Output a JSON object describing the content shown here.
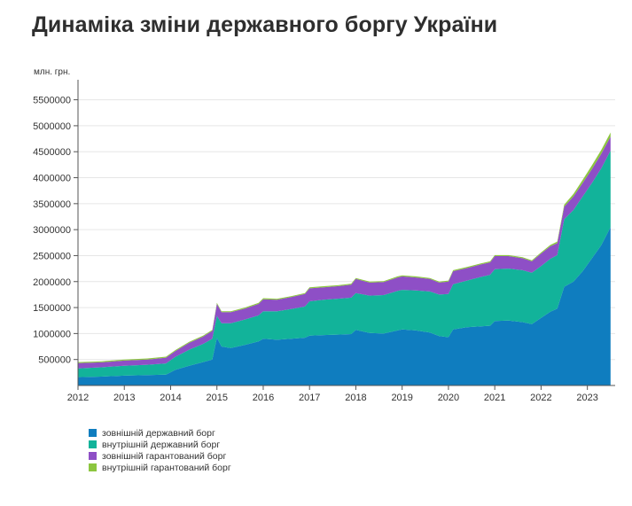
{
  "title": "Динаміка зміни державного боргу України",
  "chart_data": {
    "type": "area",
    "stacked": true,
    "ylabel": "млн. грн.",
    "ylim": [
      0,
      5800000
    ],
    "yticks": [
      500000,
      1000000,
      1500000,
      2000000,
      2500000,
      3000000,
      3500000,
      4000000,
      4500000,
      5000000,
      5500000
    ],
    "ytick_labels": [
      "500000",
      "1000000",
      "1500000",
      "2000000",
      "2500000",
      "3000000",
      "3500000",
      "4000000",
      "4500000",
      "5000000",
      "5500000"
    ],
    "xlim": [
      2012.0,
      2023.6
    ],
    "xticks": [
      2012,
      2013,
      2014,
      2015,
      2016,
      2017,
      2018,
      2019,
      2020,
      2021,
      2022,
      2023
    ],
    "xtick_labels": [
      "2012",
      "2013",
      "2014",
      "2015",
      "2016",
      "2017",
      "2018",
      "2019",
      "2020",
      "2021",
      "2022",
      "2023"
    ],
    "x": [
      2012.0,
      2012.5,
      2013.0,
      2013.5,
      2013.9,
      2014.1,
      2014.4,
      2014.7,
      2014.9,
      2015.0,
      2015.1,
      2015.3,
      2015.6,
      2015.9,
      2016.0,
      2016.3,
      2016.6,
      2016.9,
      2017.0,
      2017.3,
      2017.6,
      2017.9,
      2018.0,
      2018.3,
      2018.6,
      2018.9,
      2019.0,
      2019.3,
      2019.6,
      2019.8,
      2020.0,
      2020.1,
      2020.4,
      2020.7,
      2020.9,
      2021.0,
      2021.3,
      2021.6,
      2021.8,
      2022.0,
      2022.2,
      2022.35,
      2022.5,
      2022.7,
      2022.9,
      2023.1,
      2023.3,
      2023.5
    ],
    "series": [
      {
        "name": "зовнішній державний борг",
        "color": "#0f7dbf",
        "values": [
          160000,
          170000,
          190000,
          200000,
          210000,
          300000,
          380000,
          450000,
          500000,
          920000,
          750000,
          720000,
          780000,
          850000,
          900000,
          880000,
          900000,
          920000,
          960000,
          970000,
          980000,
          990000,
          1070000,
          1010000,
          1000000,
          1060000,
          1080000,
          1060000,
          1020000,
          950000,
          930000,
          1080000,
          1120000,
          1140000,
          1150000,
          1240000,
          1250000,
          1220000,
          1180000,
          1300000,
          1420000,
          1480000,
          1900000,
          2000000,
          2200000,
          2450000,
          2700000,
          3050000
        ]
      },
      {
        "name": "внутрішній державний борг",
        "color": "#12b39a",
        "values": [
          170000,
          180000,
          190000,
          200000,
          215000,
          250000,
          310000,
          350000,
          400000,
          420000,
          450000,
          480000,
          490000,
          500000,
          530000,
          550000,
          570000,
          600000,
          660000,
          680000,
          690000,
          700000,
          710000,
          720000,
          740000,
          760000,
          760000,
          770000,
          790000,
          800000,
          830000,
          870000,
          900000,
          950000,
          980000,
          1000000,
          1000000,
          1000000,
          990000,
          1000000,
          1020000,
          1030000,
          1300000,
          1380000,
          1440000,
          1450000,
          1480000,
          1470000
        ]
      },
      {
        "name": "зовнішній гарантований борг",
        "color": "#8e4fc6",
        "values": [
          100000,
          95000,
          100000,
          100000,
          110000,
          110000,
          130000,
          140000,
          150000,
          230000,
          210000,
          210000,
          210000,
          220000,
          230000,
          220000,
          230000,
          240000,
          250000,
          240000,
          240000,
          250000,
          270000,
          250000,
          250000,
          260000,
          260000,
          250000,
          240000,
          230000,
          240000,
          250000,
          240000,
          240000,
          240000,
          250000,
          240000,
          230000,
          220000,
          240000,
          240000,
          230000,
          240000,
          260000,
          260000,
          270000,
          280000,
          270000
        ]
      },
      {
        "name": "внутрішній гарантований борг",
        "color": "#8cc63f",
        "values": [
          20000,
          20000,
          20000,
          20000,
          20000,
          20000,
          20000,
          20000,
          20000,
          20000,
          20000,
          20000,
          20000,
          20000,
          20000,
          20000,
          20000,
          20000,
          20000,
          20000,
          20000,
          20000,
          20000,
          20000,
          20000,
          20000,
          20000,
          20000,
          20000,
          20000,
          20000,
          20000,
          20000,
          20000,
          20000,
          20000,
          20000,
          20000,
          20000,
          20000,
          25000,
          30000,
          40000,
          50000,
          60000,
          70000,
          75000,
          80000
        ]
      }
    ],
    "legend_position": "bottom-left"
  }
}
